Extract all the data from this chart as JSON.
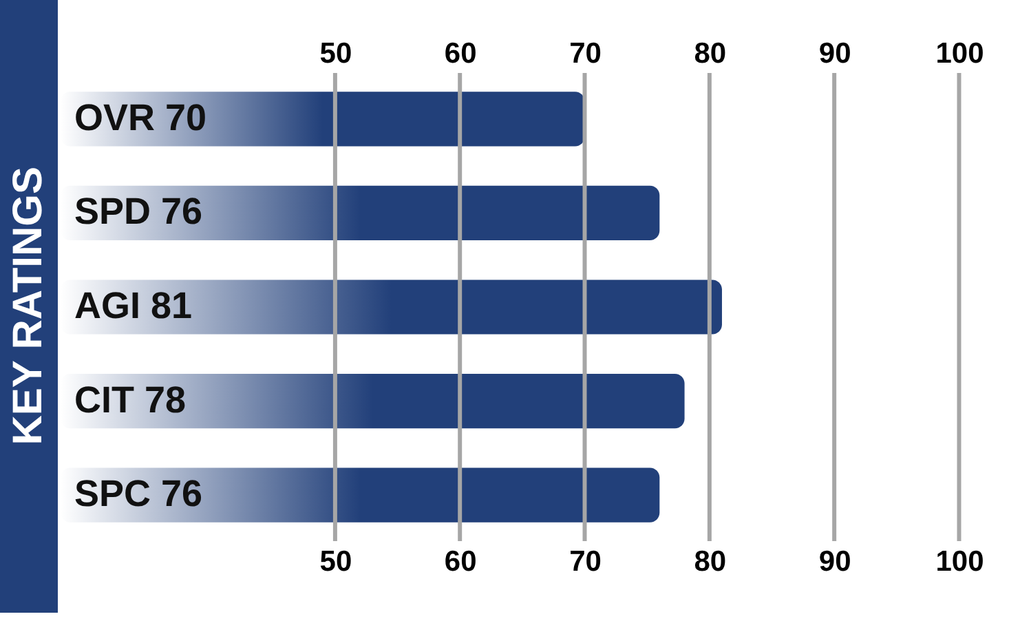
{
  "chart_data": {
    "type": "bar",
    "orientation": "horizontal",
    "title": "KEY RATINGS",
    "categories": [
      "OVR",
      "SPD",
      "AGI",
      "CIT",
      "SPC"
    ],
    "values": [
      70,
      76,
      81,
      78,
      76
    ],
    "color": "#22407a",
    "xlim": [
      28,
      104
    ],
    "xticks": [
      50,
      60,
      70,
      80,
      90,
      100
    ],
    "x2lim": [
      28,
      104
    ],
    "x2ticks": [
      50,
      60,
      70,
      80,
      90,
      100
    ],
    "grid": "x",
    "data_labels": true
  }
}
